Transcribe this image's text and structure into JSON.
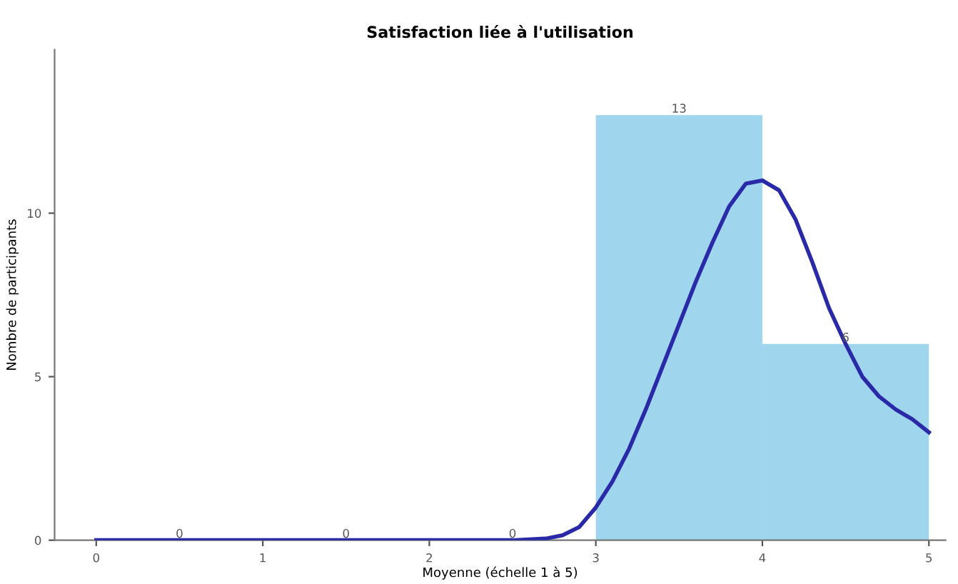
{
  "chart_data": {
    "type": "histogram",
    "title": "Satisfaction liée à l'utilisation",
    "xlabel": "Moyenne (échelle 1 à 5)",
    "ylabel": "Nombre de participants",
    "bins": [
      0,
      1,
      2,
      3,
      4,
      5
    ],
    "values": [
      0,
      0,
      0,
      13,
      6
    ],
    "color": "#9fd6ee",
    "value_labels": [
      "0",
      "0",
      "0",
      "13",
      "6"
    ],
    "series": [
      {
        "type": "line",
        "color": "#2a2aa8",
        "x": [
          0,
          0.5,
          1,
          1.5,
          2,
          2.5,
          2.7,
          2.8,
          2.9,
          3.0,
          3.1,
          3.2,
          3.3,
          3.4,
          3.5,
          3.6,
          3.7,
          3.8,
          3.9,
          4.0,
          4.1,
          4.2,
          4.3,
          4.4,
          4.5,
          4.6,
          4.7,
          4.8,
          4.9,
          5.0
        ],
        "values": [
          0,
          0,
          0,
          0,
          0,
          0,
          0.05,
          0.15,
          0.4,
          1.0,
          1.8,
          2.8,
          4.0,
          5.3,
          6.6,
          7.9,
          9.1,
          10.2,
          10.9,
          11.0,
          10.7,
          9.8,
          8.5,
          7.1,
          6.0,
          5.0,
          4.4,
          4.0,
          3.7,
          3.3
        ]
      }
    ],
    "xlim": [
      -0.25,
      5.1
    ],
    "ylim": [
      0,
      15
    ],
    "xticks": [
      0,
      1,
      2,
      3,
      4,
      5
    ],
    "yticks": [
      0,
      5,
      10
    ],
    "grid": false
  }
}
